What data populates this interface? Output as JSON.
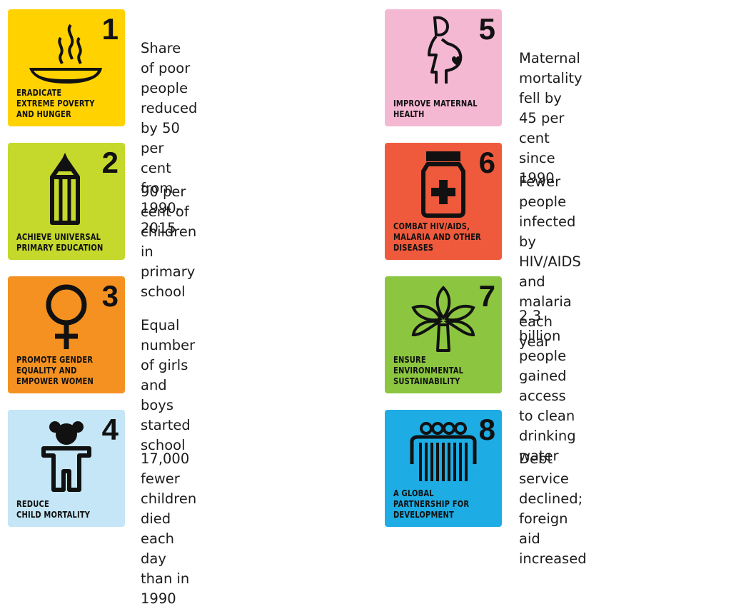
{
  "goals": [
    {
      "number": "1",
      "label": "ERADICATE\nEXTREME POVERTY\nAND HUNGER",
      "description": "Share of poor people\nreduced by 50 per cent\nfrom 1990-2015",
      "color": "#FFD200",
      "icon": "soup-bowl-icon"
    },
    {
      "number": "2",
      "label": "ACHIEVE UNIVERSAL\nPRIMARY EDUCATION",
      "description": "90 per cent of children\nin primary school",
      "color": "#C5D82C",
      "icon": "pencil-icon"
    },
    {
      "number": "3",
      "label": "PROMOTE GENDER\nEQUALITY AND\nEMPOWER WOMEN",
      "description": "Equal number of girls and\nboys started school",
      "color": "#F59120",
      "icon": "female-symbol-icon"
    },
    {
      "number": "4",
      "label": "REDUCE\nCHILD MORTALITY",
      "description": "17,000 fewer children died\neach day than in 1990",
      "color": "#C4E6F6",
      "icon": "teddy-bear-icon"
    },
    {
      "number": "5",
      "label": "IMPROVE MATERNAL\nHEALTH",
      "description": "Maternal mortality fell by\n45 per cent since 1990",
      "color": "#F5B8D3",
      "icon": "pregnant-woman-icon"
    },
    {
      "number": "6",
      "label": "COMBAT HIV/AIDS,\nMALARIA AND OTHER\nDISEASES",
      "description": "Fewer people infected\nby HIV/AIDS and\nmalaria each year",
      "color": "#EF5A3C",
      "icon": "medicine-bottle-icon"
    },
    {
      "number": "7",
      "label": "ENSURE\nENVIRONMENTAL\nSUSTAINABILITY",
      "description": "2.3 billion people\ngained access to clean\ndrinking water",
      "color": "#8CC640",
      "icon": "tree-icon"
    },
    {
      "number": "8",
      "label": "A GLOBAL\nPARTNERSHIP FOR\nDEVELOPMENT",
      "description": "Debt service declined;\nforeign aid increased",
      "color": "#1DACE3",
      "icon": "people-group-icon"
    }
  ]
}
